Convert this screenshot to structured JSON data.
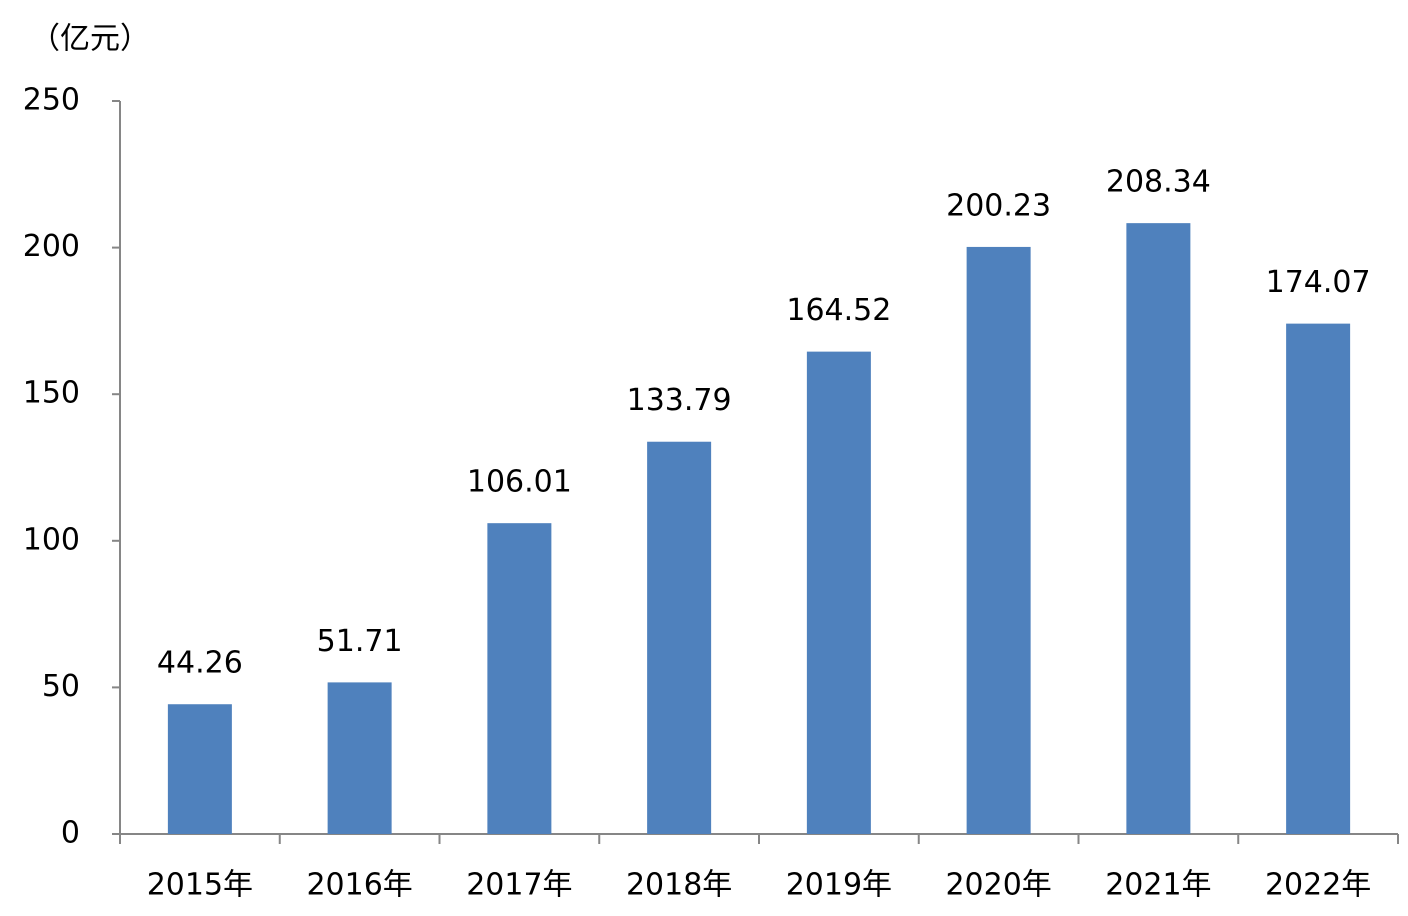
{
  "chart_data": {
    "type": "bar",
    "ylabel": "（亿元）",
    "categories": [
      "2015年",
      "2016年",
      "2017年",
      "2018年",
      "2019年",
      "2020年",
      "2021年",
      "2022年"
    ],
    "values": [
      44.26,
      51.71,
      106.01,
      133.79,
      164.52,
      200.23,
      208.34,
      174.07
    ],
    "color": "#4f81bd",
    "ylim": [
      0,
      250
    ],
    "yticks": [
      0,
      50,
      100,
      150,
      200,
      250
    ],
    "grid": false
  }
}
